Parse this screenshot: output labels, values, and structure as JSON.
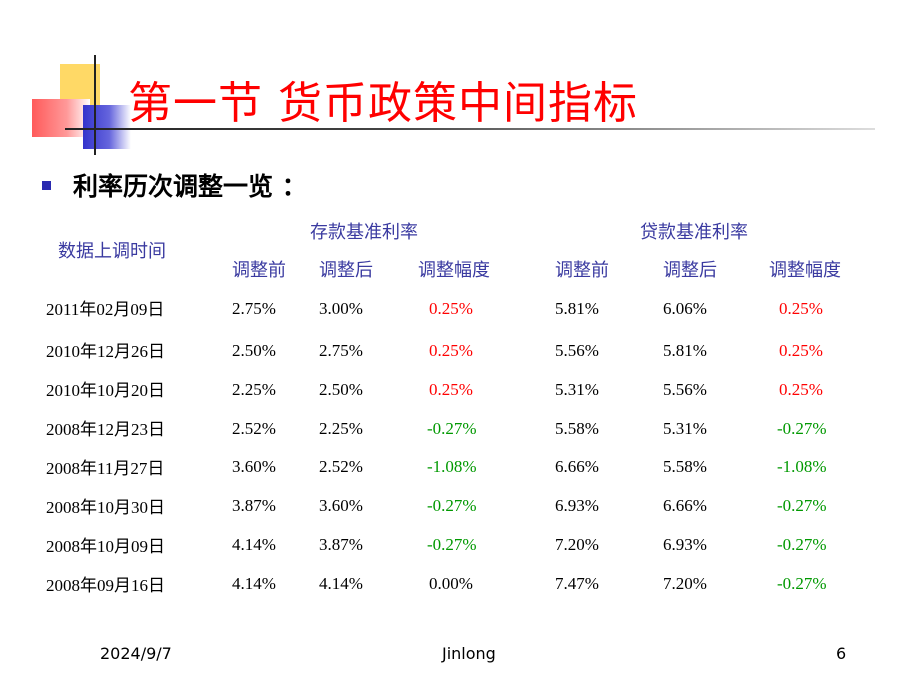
{
  "slide": {
    "title": "第一节 货币政策中间指标",
    "subtitle": "利率历次调整一览 ：",
    "colors": {
      "title": "#ff0000",
      "header": "#3a3aa0",
      "positive": "#ff0000",
      "negative": "#009900"
    }
  },
  "table": {
    "date_header": "数据上调时间",
    "deposit_group": "存款基准利率",
    "loan_group": "贷款基准利率",
    "sub_headers": [
      "调整前",
      "调整后",
      "调整幅度",
      "调整前",
      "调整后",
      "调整幅度"
    ],
    "rows": [
      {
        "date": "2011年02月09日",
        "dep_before": "2.75%",
        "dep_after": "3.00%",
        "dep_change": "0.25%",
        "loan_before": "5.81%",
        "loan_after": "6.06%",
        "loan_change": "0.25%"
      },
      {
        "date": "2010年12月26日",
        "dep_before": "2.50%",
        "dep_after": "2.75%",
        "dep_change": "0.25%",
        "loan_before": "5.56%",
        "loan_after": "5.81%",
        "loan_change": "0.25%"
      },
      {
        "date": "2010年10月20日",
        "dep_before": "2.25%",
        "dep_after": "2.50%",
        "dep_change": "0.25%",
        "loan_before": "5.31%",
        "loan_after": "5.56%",
        "loan_change": "0.25%"
      },
      {
        "date": "2008年12月23日",
        "dep_before": "2.52%",
        "dep_after": "2.25%",
        "dep_change": "-0.27%",
        "loan_before": "5.58%",
        "loan_after": "5.31%",
        "loan_change": "-0.27%"
      },
      {
        "date": "2008年11月27日",
        "dep_before": "3.60%",
        "dep_after": "2.52%",
        "dep_change": "-1.08%",
        "loan_before": "6.66%",
        "loan_after": "5.58%",
        "loan_change": "-1.08%"
      },
      {
        "date": "2008年10月30日",
        "dep_before": "3.87%",
        "dep_after": "3.60%",
        "dep_change": "-0.27%",
        "loan_before": "6.93%",
        "loan_after": "6.66%",
        "loan_change": "-0.27%"
      },
      {
        "date": "2008年10月09日",
        "dep_before": "4.14%",
        "dep_after": "3.87%",
        "dep_change": "-0.27%",
        "loan_before": "7.20%",
        "loan_after": "6.93%",
        "loan_change": "-0.27%"
      },
      {
        "date": "2008年09月16日",
        "dep_before": "4.14%",
        "dep_after": "4.14%",
        "dep_change": "0.00%",
        "loan_before": "7.47%",
        "loan_after": "7.20%",
        "loan_change": "-0.27%"
      }
    ]
  },
  "footer": {
    "date": "2024/9/7",
    "author": "Jinlong",
    "page_number": "6"
  }
}
